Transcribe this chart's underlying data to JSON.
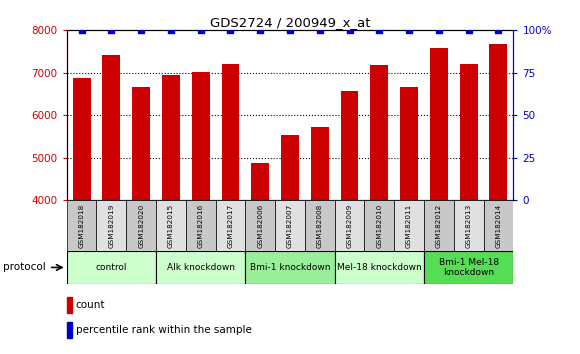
{
  "title": "GDS2724 / 200949_x_at",
  "samples": [
    "GSM182018",
    "GSM182019",
    "GSM182020",
    "GSM182015",
    "GSM182016",
    "GSM182017",
    "GSM182006",
    "GSM182007",
    "GSM182008",
    "GSM182009",
    "GSM182010",
    "GSM182011",
    "GSM182012",
    "GSM182013",
    "GSM182014"
  ],
  "counts": [
    6880,
    7420,
    6650,
    6940,
    7010,
    7200,
    4880,
    5540,
    5720,
    6560,
    7180,
    6660,
    7570,
    7210,
    7680
  ],
  "percentile_ranks": [
    100,
    100,
    100,
    100,
    100,
    100,
    100,
    100,
    100,
    100,
    100,
    100,
    100,
    100,
    100
  ],
  "ylim_left": [
    4000,
    8000
  ],
  "ylim_right": [
    0,
    100
  ],
  "bar_color": "#cc0000",
  "dot_color": "#0000cc",
  "dot_size": 18,
  "groups": [
    {
      "label": "control",
      "start": 0,
      "end": 3,
      "color": "#ccffcc"
    },
    {
      "label": "Alk knockdown",
      "start": 3,
      "end": 6,
      "color": "#ccffcc"
    },
    {
      "label": "Bmi-1 knockdown",
      "start": 6,
      "end": 9,
      "color": "#99ee99"
    },
    {
      "label": "Mel-18 knockdown",
      "start": 9,
      "end": 12,
      "color": "#ccffcc"
    },
    {
      "label": "Bmi-1 Mel-18\nknockdown",
      "start": 12,
      "end": 15,
      "color": "#55dd55"
    }
  ],
  "left_tick_color": "#cc0000",
  "right_tick_color": "#0000cc",
  "title_color": "#000000",
  "grid_color": "#000000",
  "yticks_left": [
    4000,
    5000,
    6000,
    7000,
    8000
  ],
  "yticks_right": [
    0,
    25,
    50,
    75,
    100
  ],
  "protocol_label": "protocol",
  "background_color": "#ffffff",
  "bar_width": 0.6,
  "box_colors_even": "#c8c8c8",
  "box_colors_odd": "#e0e0e0"
}
